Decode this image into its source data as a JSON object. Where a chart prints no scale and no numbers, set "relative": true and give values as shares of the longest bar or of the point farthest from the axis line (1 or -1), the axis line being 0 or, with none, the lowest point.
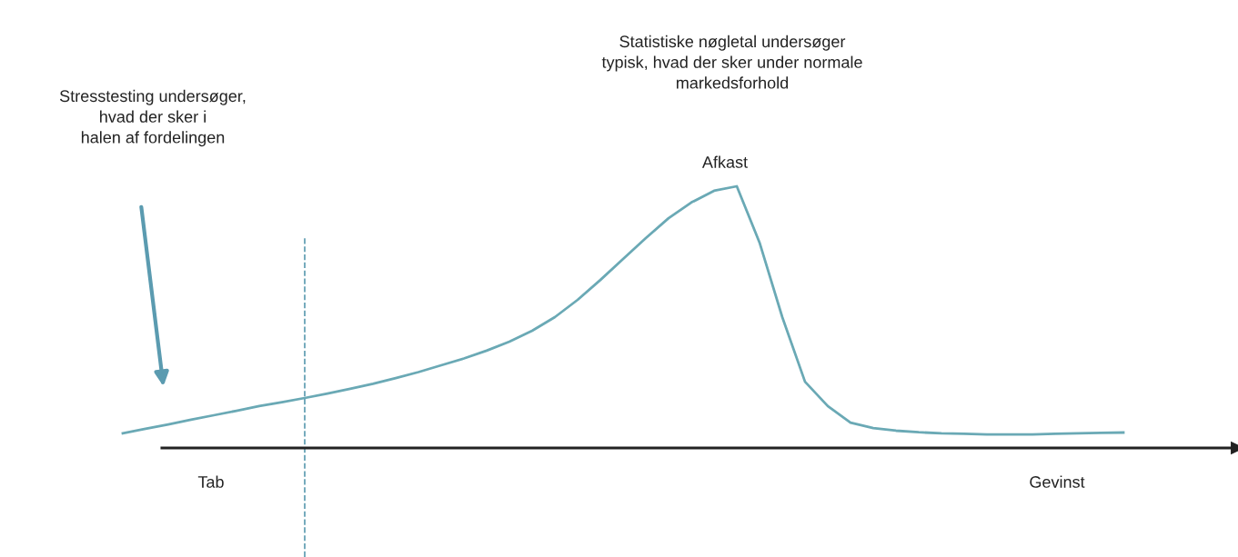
{
  "chart_data": {
    "type": "line",
    "relative": true,
    "categories": [
      null,
      null,
      null,
      null,
      null,
      null,
      null,
      null,
      null,
      null,
      null,
      null,
      null,
      null,
      null,
      null,
      null,
      null,
      null,
      null,
      null,
      null,
      null,
      null,
      null,
      null,
      null,
      null,
      null,
      null,
      null,
      null,
      null,
      null,
      null,
      null,
      null,
      null,
      null,
      null,
      null,
      null,
      null,
      null,
      null
    ],
    "series": [
      {
        "color": "#6aa9b5",
        "values": [
          0.056,
          0.073,
          0.09,
          0.108,
          0.125,
          0.142,
          0.16,
          0.175,
          0.191,
          0.208,
          0.226,
          0.245,
          0.267,
          0.29,
          0.316,
          0.342,
          0.372,
          0.406,
          0.448,
          0.5,
          0.566,
          0.642,
          0.722,
          0.802,
          0.878,
          0.938,
          0.983,
          1.0,
          0.785,
          0.5,
          0.253,
          0.16,
          0.097,
          0.076,
          0.066,
          0.06,
          0.056,
          0.054,
          0.052,
          0.052,
          0.052,
          0.054,
          0.056,
          0.058,
          0.059
        ]
      }
    ],
    "annotations": [
      "Stresstesting undersøger,\nhvad der sker i\nhalen af fordelingen",
      "Statistiske nøgletal undersøger\ntypisk, hvad der sker under normale\nmarkedsforhold",
      "Afkast",
      "Tab",
      "Gevinst"
    ],
    "legend": false,
    "marker": "none",
    "line_style": "solid"
  }
}
